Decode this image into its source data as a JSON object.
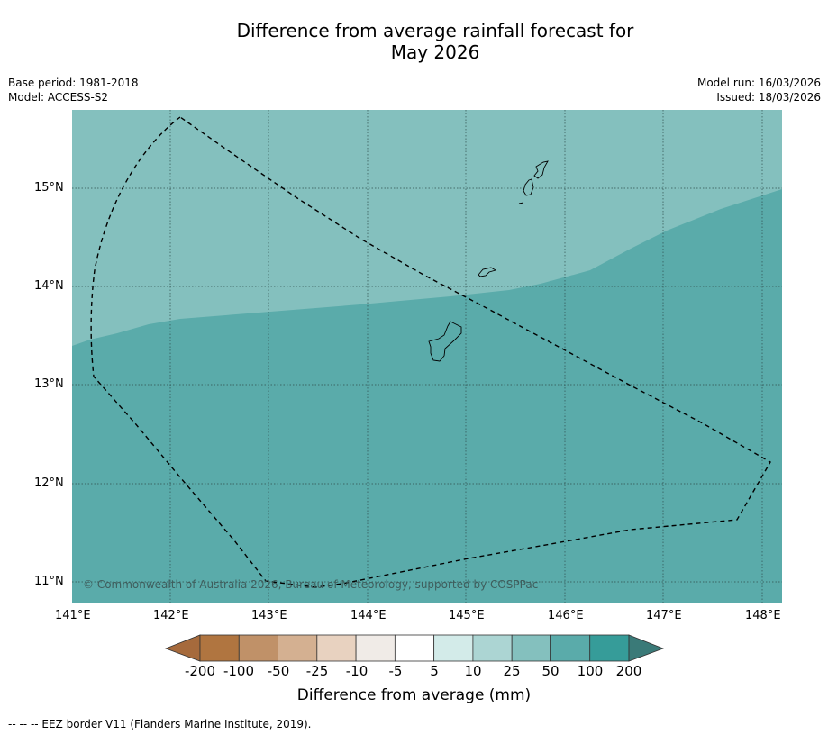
{
  "title_line1": "Difference from average rainfall forecast for",
  "title_line2": "May 2026",
  "base_period": "Base period: 1981-2018",
  "model": "Model: ACCESS-S2",
  "model_run": "Model run: 16/03/2026",
  "issued": "Issued: 18/03/2026",
  "copyright": "© Commonwealth of Australia 2026, Bureau of Meteorology, supported by COSPPac",
  "lon_ticks": [
    "141°E",
    "142°E",
    "143°E",
    "144°E",
    "145°E",
    "146°E",
    "147°E",
    "148°E"
  ],
  "lat_ticks": [
    "15°N",
    "14°N",
    "13°N",
    "12°N",
    "11°N"
  ],
  "colorbar": {
    "title": "Difference from average (mm)",
    "tick_labels": [
      "-200",
      "-100",
      "-50",
      "-25",
      "-10",
      "-5",
      "5",
      "10",
      "25",
      "50",
      "100",
      "200"
    ],
    "colors": {
      "under": "#a66a3c",
      "bins": [
        "#b07540",
        "#c09168",
        "#d4b091",
        "#e8d2c0",
        "#f0ebe7",
        "#ffffff",
        "#d3ebe9",
        "#acd5d3",
        "#84c0be",
        "#5aabaa",
        "#369c99"
      ],
      "over": "#3a7a78"
    }
  },
  "map": {
    "region_colors": {
      "light": "#84c0be",
      "dark": "#5aabaa"
    }
  },
  "footnote": "--  --  -- EEZ border V11 (Flanders Marine Institute, 2019)."
}
